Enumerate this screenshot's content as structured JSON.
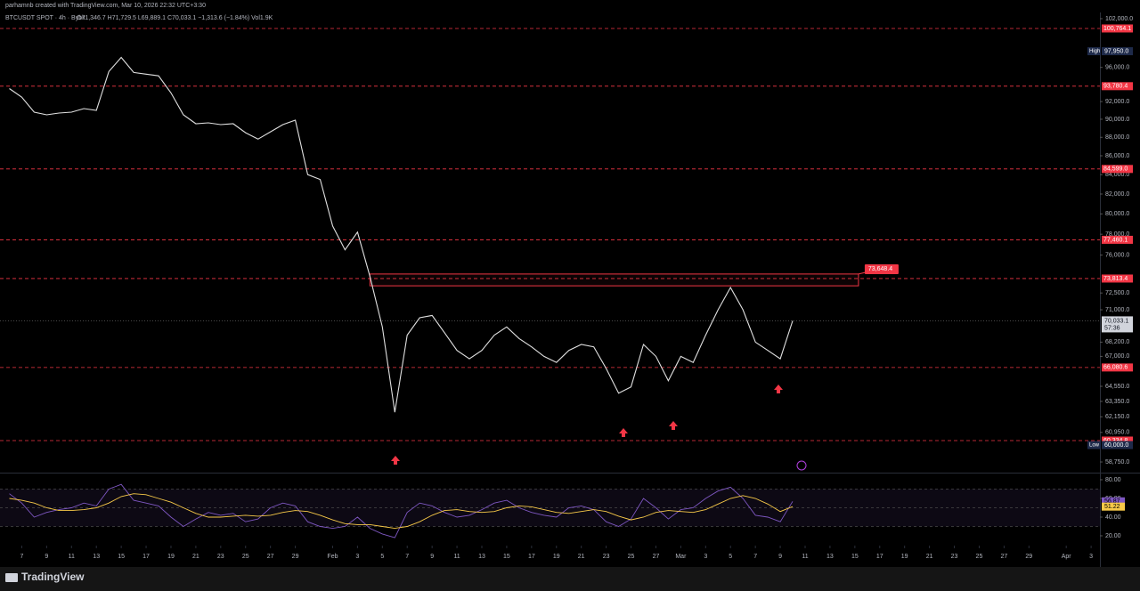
{
  "header": {
    "author_line": "parhamnb created with TradingView.com, Mar 10, 2026 22:32 UTC+3:30",
    "symbol": "BTCUSDT SPOT · 4h · Bybit",
    "ohlc": "O71,346.7 H71,729.5 L69,889.1 C70,033.1 −1,313.6 (−1.84%) Vol1.9K"
  },
  "chart_data": [
    {
      "type": "line",
      "log_scale": true,
      "x": [
        "2026-01-06",
        "2026-01-07",
        "2026-01-08",
        "2026-01-09",
        "2026-01-10",
        "2026-01-11",
        "2026-01-12",
        "2026-01-13",
        "2026-01-14",
        "2026-01-15",
        "2026-01-16",
        "2026-01-17",
        "2026-01-18",
        "2026-01-19",
        "2026-01-20",
        "2026-01-21",
        "2026-01-22",
        "2026-01-23",
        "2026-01-24",
        "2026-01-25",
        "2026-01-26",
        "2026-01-27",
        "2026-01-28",
        "2026-01-29",
        "2026-01-30",
        "2026-01-31",
        "2026-02-01",
        "2026-02-02",
        "2026-02-03",
        "2026-02-04",
        "2026-02-05",
        "2026-02-06",
        "2026-02-07",
        "2026-02-08",
        "2026-02-09",
        "2026-02-10",
        "2026-02-11",
        "2026-02-12",
        "2026-02-13",
        "2026-02-14",
        "2026-02-15",
        "2026-02-16",
        "2026-02-17",
        "2026-02-18",
        "2026-02-19",
        "2026-02-20",
        "2026-02-21",
        "2026-02-22",
        "2026-02-23",
        "2026-02-24",
        "2026-02-25",
        "2026-02-26",
        "2026-02-27",
        "2026-02-28",
        "2026-03-01",
        "2026-03-02",
        "2026-03-03",
        "2026-03-04",
        "2026-03-05",
        "2026-03-06",
        "2026-03-07",
        "2026-03-08",
        "2026-03-09",
        "2026-03-10"
      ],
      "series": [
        {
          "color": "#e0e0e0",
          "values": [
            93500,
            92500,
            90800,
            90500,
            90700,
            90800,
            91200,
            91000,
            95500,
            97200,
            95400,
            95200,
            95000,
            93000,
            90500,
            89500,
            89600,
            89400,
            89500,
            88500,
            87800,
            88600,
            89400,
            89900,
            84000,
            83500,
            78800,
            76500,
            78200,
            74000,
            69500,
            62500,
            68800,
            70300,
            70500,
            69000,
            67500,
            66800,
            67500,
            68800,
            69500,
            68500,
            67800,
            67000,
            66500,
            67500,
            68000,
            67800,
            66000,
            64000,
            64500,
            68000,
            67000,
            65000,
            67000,
            66500,
            68800,
            71000,
            73000,
            71000,
            68200,
            67500,
            66800,
            70033.1
          ]
        }
      ],
      "xlim": [
        "2026-01-05T06:00",
        "2026-04-03T17:00"
      ],
      "ylim": [
        58040,
        102790
      ],
      "yticks": [
        {
          "value": 102000,
          "label": "102,000.0"
        },
        {
          "value": 96000,
          "label": "96,000.0"
        },
        {
          "value": 92000,
          "label": "92,000.0"
        },
        {
          "value": 90000,
          "label": "90,000.0"
        },
        {
          "value": 88000,
          "label": "88,000.0"
        },
        {
          "value": 86000,
          "label": "86,000.0"
        },
        {
          "value": 84000,
          "label": "84,000.0"
        },
        {
          "value": 82000,
          "label": "82,000.0"
        },
        {
          "value": 80000,
          "label": "80,000.0"
        },
        {
          "value": 78000,
          "label": "78,000.0"
        },
        {
          "value": 76000,
          "label": "76,000.0"
        },
        {
          "value": 72500,
          "label": "72,500.0"
        },
        {
          "value": 71000,
          "label": "71,000.0"
        },
        {
          "value": 68200,
          "label": "68,200.0"
        },
        {
          "value": 67000,
          "label": "67,000.0"
        },
        {
          "value": 64550,
          "label": "64,550.0"
        },
        {
          "value": 63350,
          "label": "63,350.0"
        },
        {
          "value": 62150,
          "label": "62,150.0"
        },
        {
          "value": 60950,
          "label": "60,950.0"
        },
        {
          "value": 58750,
          "label": "58,750.0"
        }
      ],
      "xticks": [
        {
          "value": "2026-01-07",
          "label": "7"
        },
        {
          "value": "2026-01-09",
          "label": "9"
        },
        {
          "value": "2026-01-11",
          "label": "11"
        },
        {
          "value": "2026-01-13",
          "label": "13"
        },
        {
          "value": "2026-01-15",
          "label": "15"
        },
        {
          "value": "2026-01-17",
          "label": "17"
        },
        {
          "value": "2026-01-19",
          "label": "19"
        },
        {
          "value": "2026-01-21",
          "label": "21"
        },
        {
          "value": "2026-01-23",
          "label": "23"
        },
        {
          "value": "2026-01-25",
          "label": "25"
        },
        {
          "value": "2026-01-27",
          "label": "27"
        },
        {
          "value": "2026-01-29",
          "label": "29"
        },
        {
          "value": "2026-02-01",
          "label": "Feb"
        },
        {
          "value": "2026-02-03",
          "label": "3"
        },
        {
          "value": "2026-02-05",
          "label": "5"
        },
        {
          "value": "2026-02-07",
          "label": "7"
        },
        {
          "value": "2026-02-09",
          "label": "9"
        },
        {
          "value": "2026-02-11",
          "label": "11"
        },
        {
          "value": "2026-02-13",
          "label": "13"
        },
        {
          "value": "2026-02-15",
          "label": "15"
        },
        {
          "value": "2026-02-17",
          "label": "17"
        },
        {
          "value": "2026-02-19",
          "label": "19"
        },
        {
          "value": "2026-02-21",
          "label": "21"
        },
        {
          "value": "2026-02-23",
          "label": "23"
        },
        {
          "value": "2026-02-25",
          "label": "25"
        },
        {
          "value": "2026-02-27",
          "label": "27"
        },
        {
          "value": "2026-03-01",
          "label": "Mar"
        },
        {
          "value": "2026-03-03",
          "label": "3"
        },
        {
          "value": "2026-03-05",
          "label": "5"
        },
        {
          "value": "2026-03-07",
          "label": "7"
        },
        {
          "value": "2026-03-09",
          "label": "9"
        },
        {
          "value": "2026-03-11",
          "label": "11"
        },
        {
          "value": "2026-03-13",
          "label": "13"
        },
        {
          "value": "2026-03-15",
          "label": "15"
        },
        {
          "value": "2026-03-17",
          "label": "17"
        },
        {
          "value": "2026-03-19",
          "label": "19"
        },
        {
          "value": "2026-03-21",
          "label": "21"
        },
        {
          "value": "2026-03-23",
          "label": "23"
        },
        {
          "value": "2026-03-25",
          "label": "25"
        },
        {
          "value": "2026-03-27",
          "label": "27"
        },
        {
          "value": "2026-03-29",
          "label": "29"
        },
        {
          "value": "2026-04-01",
          "label": "Apr"
        },
        {
          "value": "2026-04-03",
          "label": "3"
        }
      ],
      "levels": [
        {
          "value": 100764.1,
          "label": "100,764.1"
        },
        {
          "value": 93780.4,
          "label": "93,780.4"
        },
        {
          "value": 84599.0,
          "label": "84,599.0"
        },
        {
          "value": 77460.1,
          "label": "77,460.1"
        },
        {
          "value": 73813.4,
          "label": "73,813.4"
        },
        {
          "value": 66080.6,
          "label": "66,080.6"
        },
        {
          "value": 60334.8,
          "label": "60,334.8"
        }
      ],
      "level_color": "#f23645",
      "high": {
        "tag": "High",
        "value": 97950,
        "label": "97,950.0"
      },
      "low": {
        "tag": "Low",
        "value": 60000,
        "label": "60,000.0"
      },
      "current": {
        "value": 70033.1,
        "label": "70,033.1",
        "countdown": "57:36"
      },
      "zone": {
        "from": "2026-02-04",
        "to": "2026-03-15T07:00",
        "low": 73150,
        "high": 74230,
        "callout": {
          "value": 73648.4,
          "label": "73,648.4"
        }
      }
    },
    {
      "type": "line",
      "series": [
        {
          "color": "#7e57c2",
          "values": [
            65,
            55,
            40,
            45,
            48,
            50,
            55,
            52,
            70,
            75,
            58,
            55,
            52,
            40,
            30,
            38,
            45,
            42,
            44,
            35,
            38,
            50,
            55,
            52,
            35,
            30,
            28,
            30,
            40,
            28,
            22,
            18,
            45,
            55,
            52,
            45,
            40,
            42,
            48,
            55,
            58,
            50,
            45,
            42,
            40,
            50,
            52,
            48,
            35,
            30,
            38,
            60,
            50,
            38,
            48,
            50,
            60,
            68,
            72,
            60,
            42,
            40,
            35,
            56.87
          ]
        },
        {
          "color": "#f7c948",
          "values": [
            60,
            58,
            55,
            50,
            47,
            47,
            48,
            50,
            55,
            62,
            65,
            64,
            60,
            56,
            50,
            44,
            40,
            40,
            41,
            42,
            41,
            42,
            45,
            47,
            46,
            42,
            37,
            33,
            32,
            32,
            30,
            28,
            30,
            35,
            42,
            47,
            48,
            46,
            45,
            46,
            50,
            52,
            51,
            48,
            45,
            44,
            46,
            48,
            46,
            41,
            37,
            40,
            45,
            47,
            46,
            45,
            48,
            54,
            60,
            63,
            60,
            54,
            46,
            51.22
          ]
        }
      ],
      "ylim": [
        9.5,
        85.7
      ],
      "yticks": [
        {
          "value": 80,
          "label": "80.00"
        },
        {
          "value": 60,
          "label": "60.00"
        },
        {
          "value": 40,
          "label": "40.00"
        },
        {
          "value": 20,
          "label": "20.00"
        }
      ],
      "levels": [
        70,
        50,
        30
      ]
    }
  ],
  "footer": {
    "brand": "TradingView"
  }
}
